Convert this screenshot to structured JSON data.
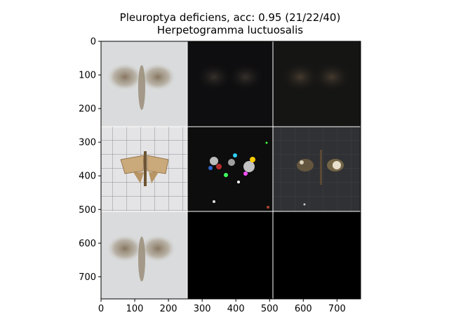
{
  "figure": {
    "title_line1": "Pleuroptya deficiens, acc: 0.95 (21/22/40)",
    "title_line2": "Herpetogramma luctuosalis"
  },
  "axes": {
    "x_ticks": [
      "0",
      "100",
      "200",
      "300",
      "400",
      "500",
      "600",
      "700"
    ],
    "y_ticks": [
      "0",
      "100",
      "200",
      "300",
      "400",
      "500",
      "600",
      "700"
    ]
  },
  "panels": [
    {
      "row": 0,
      "col": 0,
      "content": "blurred-moth-average-light"
    },
    {
      "row": 0,
      "col": 1,
      "content": "dark-moth-saliency-faint"
    },
    {
      "row": 0,
      "col": 2,
      "content": "dark-moth-saliency-brown"
    },
    {
      "row": 1,
      "col": 0,
      "content": "moth-photo-on-grid"
    },
    {
      "row": 1,
      "col": 1,
      "content": "colored-speckle-saliency"
    },
    {
      "row": 1,
      "col": 2,
      "content": "masked-moth-on-dark-grid"
    },
    {
      "row": 2,
      "col": 0,
      "content": "blurred-moth-average-light"
    },
    {
      "row": 2,
      "col": 1,
      "content": "black-empty"
    },
    {
      "row": 2,
      "col": 2,
      "content": "black-empty"
    }
  ],
  "colors": {
    "light_bg": "#d8dadb",
    "moth_brown": "#8a7a60",
    "dark_bg": "#0d0d0d",
    "grid_dark_bg": "#2f3033",
    "divider": "#ffffff"
  }
}
